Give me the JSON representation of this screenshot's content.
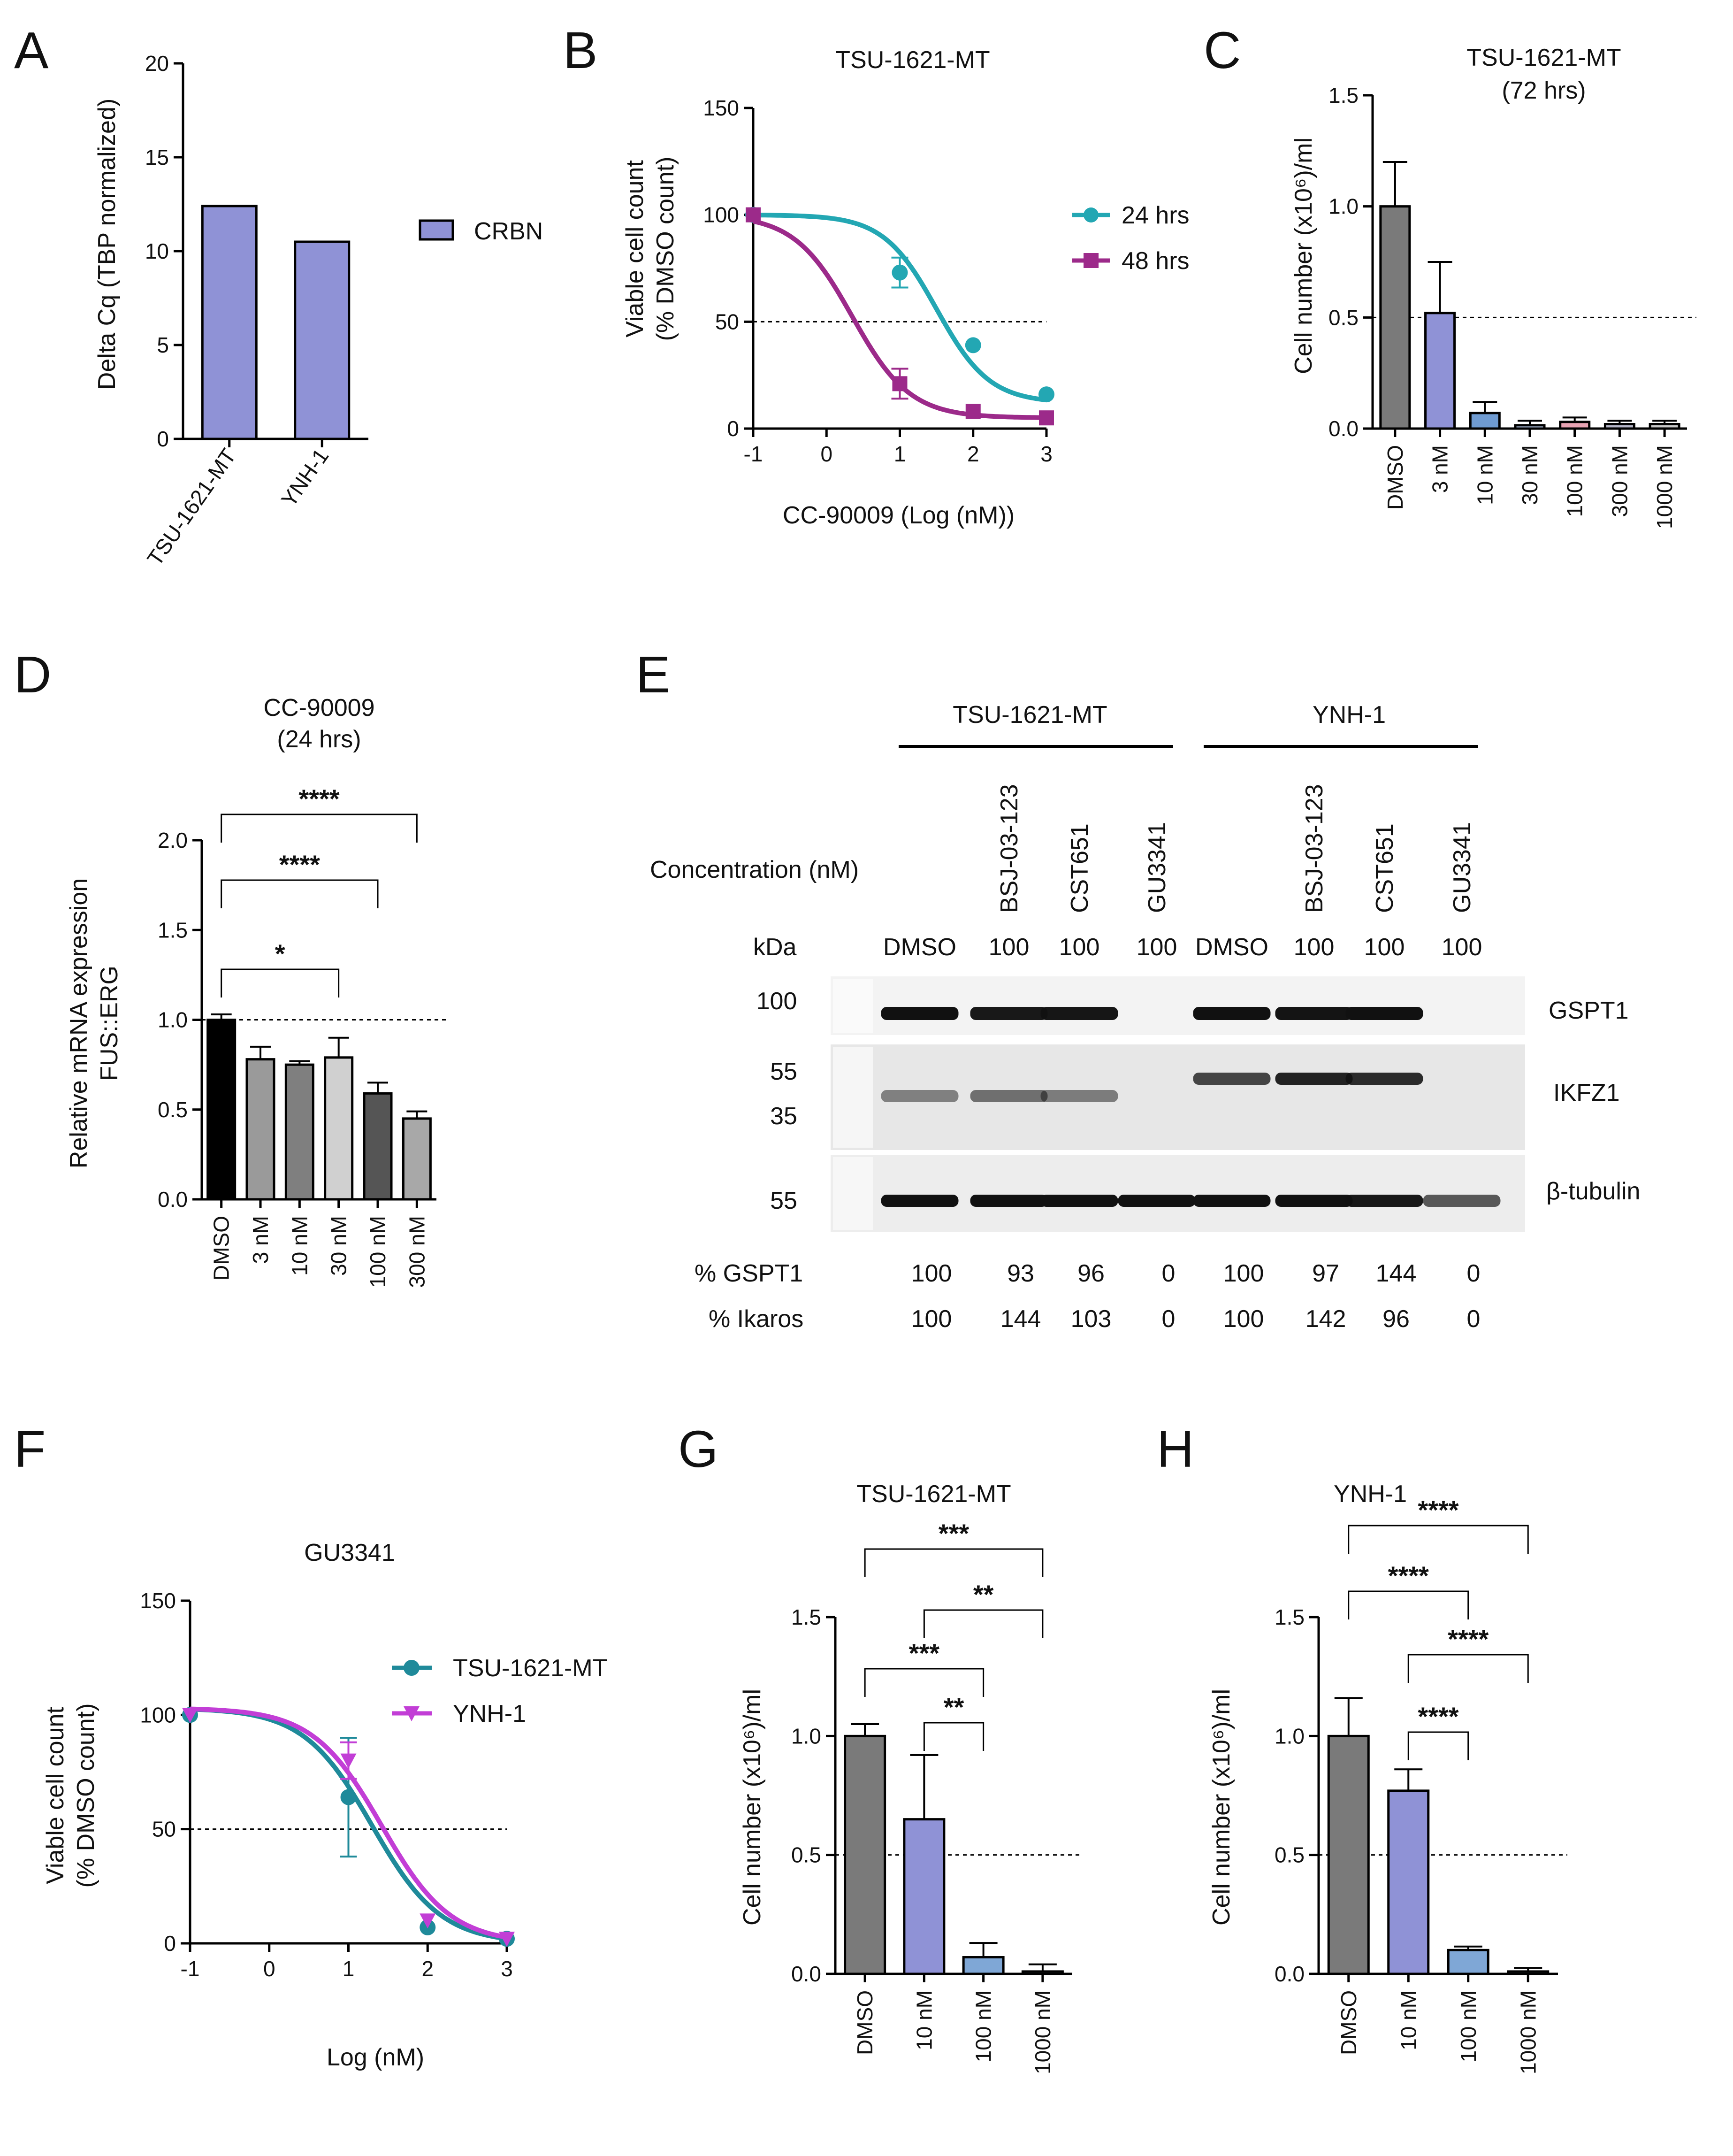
{
  "chart_data": [
    {
      "panel": "A",
      "type": "bar",
      "title": "",
      "ylabel": "Delta Cq (TBP normalized)",
      "ylim": [
        0,
        20
      ],
      "yticks": [
        "0",
        "5",
        "10",
        "15",
        "20"
      ],
      "categories": [
        "TSU-1621-MT",
        "YNH-1"
      ],
      "series": [
        {
          "name": "CRBN",
          "values": [
            12.4,
            10.5
          ],
          "color": "#8f92d6"
        }
      ],
      "legend": [
        "CRBN"
      ]
    },
    {
      "panel": "B",
      "type": "line",
      "title": "TSU-1621-MT",
      "xlabel": "CC-90009 (Log (nM))",
      "ylabel_lines": [
        "Viable cell count",
        "(% DMSO count)"
      ],
      "xlim": [
        -1,
        3
      ],
      "ylim": [
        0,
        150
      ],
      "xticks": [
        "-1",
        "0",
        "1",
        "2",
        "3"
      ],
      "yticks": [
        "0",
        "50",
        "100",
        "150"
      ],
      "refline": 50,
      "series": [
        {
          "name": "24 hrs",
          "color": "#23a7b3",
          "x": [
            -1,
            1,
            2,
            3
          ],
          "y": [
            100,
            73,
            39,
            16
          ],
          "err": [
            0,
            7,
            0,
            0
          ],
          "fit": {
            "top": 100,
            "bottom": 12,
            "logec50": 1.5,
            "hill": 1.2
          }
        },
        {
          "name": "48 hrs",
          "color": "#9c2a8a",
          "x": [
            -1,
            1,
            2,
            3
          ],
          "y": [
            100,
            21,
            8,
            5
          ],
          "err": [
            0,
            7,
            0,
            0
          ],
          "fit": {
            "top": 100,
            "bottom": 5,
            "logec50": 0.35,
            "hill": 1.1
          }
        }
      ]
    },
    {
      "panel": "C",
      "type": "bar",
      "title_lines": [
        "TSU-1621-MT",
        "(72 hrs)"
      ],
      "ylabel": "Cell number (x10⁶)/ml",
      "ylim": [
        0,
        1.5
      ],
      "yticks": [
        "0.0",
        "0.5",
        "1.0",
        "1.5"
      ],
      "refline": 0.5,
      "categories": [
        "DMSO",
        "3 nM",
        "10 nM",
        "30 nM",
        "100 nM",
        "300 nM",
        "1000 nM"
      ],
      "values": [
        1.0,
        0.52,
        0.07,
        0.015,
        0.03,
        0.02,
        0.02
      ],
      "errors": [
        0.2,
        0.23,
        0.05,
        0.02,
        0.02,
        0.015,
        0.015
      ],
      "colors": [
        "#7a7a7a",
        "#8f92d6",
        "#6f9bd1",
        "#b7c7e6",
        "#e8a3b3",
        "#b6b6c8",
        "#c9c9c9"
      ]
    },
    {
      "panel": "D",
      "type": "bar",
      "title_lines": [
        "CC-90009",
        "(24 hrs)"
      ],
      "ylabel_lines": [
        "Relative mRNA expression",
        "FUS::ERG"
      ],
      "ylim": [
        0,
        2.0
      ],
      "yticks": [
        "0.0",
        "0.5",
        "1.0",
        "1.5",
        "2.0"
      ],
      "refline": 1.0,
      "categories": [
        "DMSO",
        "3 nM",
        "10 nM",
        "30 nM",
        "100 nM",
        "300 nM"
      ],
      "values": [
        1.0,
        0.78,
        0.75,
        0.79,
        0.59,
        0.45
      ],
      "errors": [
        0.03,
        0.07,
        0.02,
        0.11,
        0.06,
        0.04
      ],
      "colors": [
        "#000000",
        "#9a9a9a",
        "#7f7f7f",
        "#d0d0d0",
        "#555555",
        "#a8a8a8"
      ],
      "significance": [
        {
          "from": 0,
          "to": 3,
          "label": "*"
        },
        {
          "from": 0,
          "to": 4,
          "label": "****"
        },
        {
          "from": 0,
          "to": 5,
          "label": "****"
        }
      ]
    },
    {
      "panel": "F",
      "type": "line",
      "title": "GU3341",
      "xlabel": "Log (nM)",
      "ylabel_lines": [
        "Viable cell count",
        "(% DMSO count)"
      ],
      "xlim": [
        -1,
        3
      ],
      "ylim": [
        0,
        150
      ],
      "xticks": [
        "-1",
        "0",
        "1",
        "2",
        "3"
      ],
      "yticks": [
        "0",
        "50",
        "100",
        "150"
      ],
      "refline": 50,
      "series": [
        {
          "name": "TSU-1621-MT",
          "color": "#1f8a9a",
          "marker": "circle",
          "x": [
            -1,
            1,
            2,
            3
          ],
          "y": [
            100,
            64,
            7,
            2
          ],
          "err": [
            0,
            26,
            0,
            0
          ],
          "fit": {
            "top": 103,
            "bottom": 0,
            "logec50": 1.3,
            "hill": 1.0
          }
        },
        {
          "name": "YNH-1",
          "color": "#c23ed6",
          "marker": "triangle",
          "x": [
            -1,
            1,
            2,
            3
          ],
          "y": [
            100,
            80,
            10,
            2
          ],
          "err": [
            0,
            8,
            0,
            0
          ],
          "fit": {
            "top": 103,
            "bottom": 0,
            "logec50": 1.42,
            "hill": 1.0
          }
        }
      ]
    },
    {
      "panel": "G",
      "type": "bar",
      "title": "TSU-1621-MT",
      "ylabel": "Cell number (x10⁶)/ml",
      "ylim": [
        0,
        1.5
      ],
      "yticks": [
        "0.0",
        "0.5",
        "1.0",
        "1.5"
      ],
      "refline": 0.5,
      "categories": [
        "DMSO",
        "10 nM",
        "100 nM",
        "1000 nM"
      ],
      "values": [
        1.0,
        0.65,
        0.07,
        0.01
      ],
      "errors": [
        0.05,
        0.27,
        0.06,
        0.03
      ],
      "colors": [
        "#7a7a7a",
        "#8f92d6",
        "#7fa7d6",
        "#9cb3d8"
      ],
      "significance": [
        {
          "from": 1,
          "to": 2,
          "label": "**"
        },
        {
          "from": 0,
          "to": 2,
          "label": "***"
        },
        {
          "from": 1,
          "to": 3,
          "label": "**"
        },
        {
          "from": 0,
          "to": 3,
          "label": "***"
        }
      ]
    },
    {
      "panel": "H",
      "type": "bar",
      "title": "YNH-1",
      "ylabel": "Cell number (x10⁶)/ml",
      "ylim": [
        0,
        1.5
      ],
      "yticks": [
        "0.0",
        "0.5",
        "1.0",
        "1.5"
      ],
      "refline": 0.5,
      "categories": [
        "DMSO",
        "10 nM",
        "100 nM",
        "1000 nM"
      ],
      "values": [
        1.0,
        0.77,
        0.1,
        0.01
      ],
      "errors": [
        0.16,
        0.09,
        0.015,
        0.015
      ],
      "colors": [
        "#7a7a7a",
        "#8f92d6",
        "#7fa7d6",
        "#9cb3d8"
      ],
      "significance": [
        {
          "from": 1,
          "to": 2,
          "label": "****"
        },
        {
          "from": 1,
          "to": 3,
          "label": "****"
        },
        {
          "from": 0,
          "to": 2,
          "label": "****"
        },
        {
          "from": 0,
          "to": 3,
          "label": "****"
        }
      ]
    }
  ],
  "western_blot": {
    "panel": "E",
    "groups": [
      "TSU-1621-MT",
      "YNH-1"
    ],
    "concentration_label": "Concentration (nM)",
    "kda_label": "kDa",
    "compound_labels": [
      "BSJ-03-123",
      "CST651",
      "GU3341",
      "BSJ-03-123",
      "CST651",
      "GU3341"
    ],
    "lane_labels": [
      "DMSO",
      "100",
      "100",
      "100",
      "DMSO",
      "100",
      "100",
      "100"
    ],
    "markers": [
      "100",
      "55",
      "35",
      "55"
    ],
    "bands": [
      "GSPT1",
      "IKFZ1",
      "β-tubulin"
    ],
    "quant": [
      {
        "label": "% GSPT1",
        "values": [
          "100",
          "93",
          "96",
          "0",
          "100",
          "97",
          "144",
          "0"
        ]
      },
      {
        "label": "% Ikaros",
        "values": [
          "100",
          "144",
          "103",
          "0",
          "100",
          "142",
          "96",
          "0"
        ]
      }
    ],
    "intensity_gspt1": [
      1.0,
      0.93,
      0.96,
      0.0,
      1.0,
      0.97,
      1.0,
      0.0
    ],
    "intensity_ikfz1": [
      0.35,
      0.45,
      0.38,
      0.0,
      0.7,
      0.9,
      0.85,
      0.0
    ],
    "intensity_tubulin": [
      1.0,
      1.0,
      1.0,
      1.0,
      1.0,
      1.0,
      0.95,
      0.5
    ]
  },
  "panel_letters": [
    "A",
    "B",
    "C",
    "D",
    "E",
    "F",
    "G",
    "H"
  ]
}
